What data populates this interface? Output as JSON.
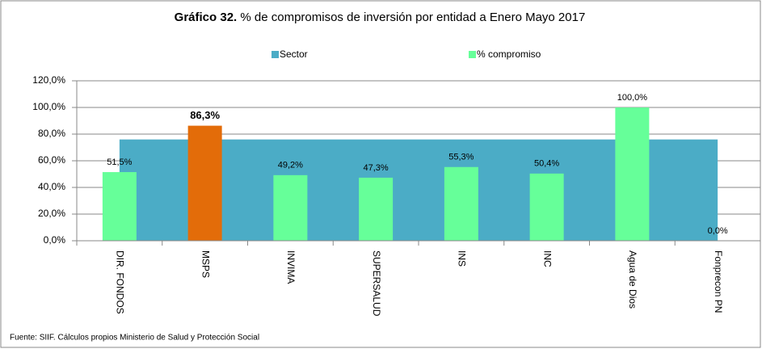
{
  "chart_data": {
    "type": "bar",
    "title_prefix": "Gráfico 32.",
    "title": "% de compromisos de inversión por entidad a Enero Mayo 2017",
    "categories": [
      "DIR. FONDOS",
      "MSPS",
      "INVIMA",
      "SUPERSALUD",
      "INS",
      "INC",
      "Agua de Dios",
      "Fonprecon PN"
    ],
    "series": [
      {
        "name": "Sector",
        "type": "area",
        "color": "#4bacc6",
        "values": [
          76,
          76,
          76,
          76,
          76,
          76,
          76,
          76
        ]
      },
      {
        "name": "% compromiso",
        "type": "bar",
        "color": "#66ff99",
        "point_colors": [
          "#66ff99",
          "#e36c09",
          "#66ff99",
          "#66ff99",
          "#66ff99",
          "#66ff99",
          "#66ff99",
          "#66ff99"
        ],
        "values": [
          51.5,
          86.3,
          49.2,
          47.3,
          55.3,
          50.4,
          100.0,
          0.0
        ],
        "value_labels": [
          "51,5%",
          "86,3%",
          "49,2%",
          "47,3%",
          "55,3%",
          "50,4%",
          "100,0%",
          "0,0%"
        ]
      }
    ],
    "ylim": [
      0,
      120
    ],
    "yticks": [
      {
        "value": 0,
        "label": "0,0%"
      },
      {
        "value": 20,
        "label": "20,0%"
      },
      {
        "value": 40,
        "label": "40,0%"
      },
      {
        "value": 60,
        "label": "60,0%"
      },
      {
        "value": 80,
        "label": "80,0%"
      },
      {
        "value": 100,
        "label": "100,0%"
      },
      {
        "value": 120,
        "label": "120,0%"
      }
    ],
    "grid": true,
    "legend": "top",
    "source": "Fuente: SIIF. Cálculos propios Ministerio de Salud y Protección Social"
  }
}
